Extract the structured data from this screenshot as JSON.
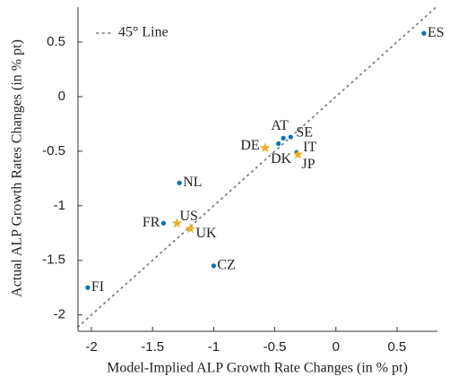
{
  "chart_data": {
    "type": "scatter",
    "x_label": "Model-Implied ALP Growth Rate Changes (in % pt)",
    "y_label": "Actual ALP Growth Rates Changes (in % pt)",
    "xlim": [
      -2.11,
      0.83
    ],
    "ylim": [
      -2.15,
      0.82
    ],
    "xticks": [
      -2,
      -1.5,
      -1,
      -0.5,
      0,
      0.5
    ],
    "yticks": [
      -2,
      -1.5,
      -1,
      -0.5,
      0,
      0.5
    ],
    "reference_line": {
      "name": "45° Line",
      "color": "#808080",
      "style": "dotted"
    },
    "legend_position": "upper left",
    "series": [
      {
        "marker": "dot",
        "color": "#0072bd",
        "labels": [
          "ES",
          "AT",
          "SE",
          "DK",
          "IT",
          "NL",
          "FR",
          "CZ",
          "FI"
        ],
        "x": [
          0.72,
          -0.43,
          -0.37,
          -0.47,
          -0.32,
          -1.28,
          -1.41,
          -1.0,
          -2.03
        ],
        "values": [
          0.58,
          -0.38,
          -0.37,
          -0.43,
          -0.51,
          -0.79,
          -1.16,
          -1.55,
          -1.75
        ]
      },
      {
        "marker": "star",
        "color": "#edb120",
        "labels": [
          "DE",
          "JP",
          "US",
          "UK"
        ],
        "x": [
          -0.58,
          -0.31,
          -1.3,
          -1.19
        ],
        "values": [
          -0.47,
          -0.53,
          -1.16,
          -1.21
        ]
      }
    ]
  }
}
